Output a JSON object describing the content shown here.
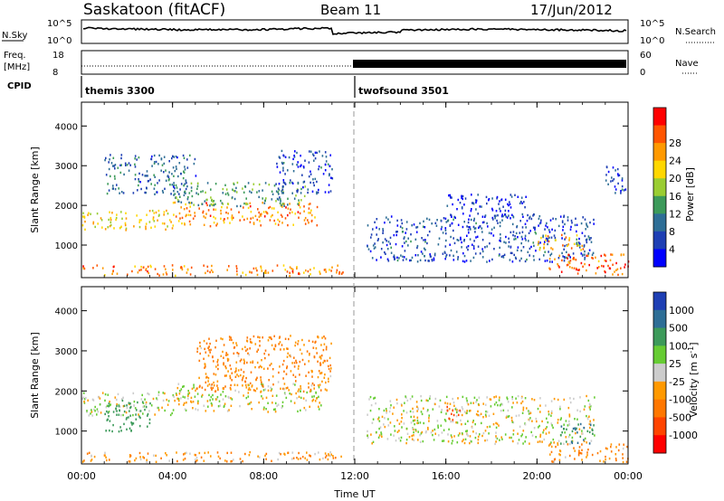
{
  "header": {
    "station": "Saskatoon (fitACF)",
    "beam": "Beam 11",
    "date": "17/Jun/2012"
  },
  "noise_panel": {
    "left_label": "N.Sky",
    "left_ticks": [
      "10^5",
      "10^0"
    ],
    "right_ticks": [
      "10^5",
      "10^0"
    ],
    "right_label": "N.Search"
  },
  "freq_panel": {
    "left_label_1": "Freq.",
    "left_label_2": "[MHz]",
    "left_ticks": [
      "18",
      "8"
    ],
    "right_ticks": [
      "60",
      "0"
    ],
    "right_label": "Nave"
  },
  "cpid": {
    "label": "CPID",
    "programs": [
      {
        "name": "themis 3300",
        "start_hour": 0
      },
      {
        "name": "twofsound 3501",
        "start_hour": 12
      }
    ]
  },
  "chart_data": [
    {
      "type": "heatmap",
      "parameter": "power",
      "xlabel": "Time UT",
      "ylabel": "Slant Range [km]",
      "x_range_hours": [
        0,
        24
      ],
      "ylim": [
        180,
        4600
      ],
      "y_ticks": [
        1000,
        2000,
        3000,
        4000
      ],
      "x_tick_labels": [
        "00:00",
        "04:00",
        "08:00",
        "12:00",
        "16:00",
        "20:00",
        "00:00"
      ],
      "colorbar": {
        "label": "Power [dB]",
        "tick_labels": [
          "4",
          "8",
          "12",
          "16",
          "20",
          "24",
          "28"
        ],
        "colors": [
          "#0000ff",
          "#1e3fb4",
          "#2e6e96",
          "#3c9a5a",
          "#9acd32",
          "#ffd700",
          "#ff9900",
          "#ff5500",
          "#ff0000"
        ]
      },
      "echo_regions": [
        {
          "t0": 0.0,
          "t1": 11.5,
          "r0": 250,
          "r1": 520,
          "value": 24
        },
        {
          "t0": 0.0,
          "t1": 4.0,
          "r0": 1400,
          "r1": 1900,
          "value": 20
        },
        {
          "t0": 4.0,
          "t1": 10.5,
          "r0": 1500,
          "r1": 2100,
          "value": 24
        },
        {
          "t0": 4.0,
          "t1": 9.8,
          "r0": 2000,
          "r1": 2600,
          "value": 12
        },
        {
          "t0": 8.5,
          "t1": 11.0,
          "r0": 2300,
          "r1": 3400,
          "value": 6
        },
        {
          "t0": 1.0,
          "t1": 5.0,
          "r0": 2300,
          "r1": 3300,
          "value": 8
        },
        {
          "t0": 12.5,
          "t1": 22.5,
          "r0": 600,
          "r1": 1800,
          "value": 6
        },
        {
          "t0": 16.0,
          "t1": 19.5,
          "r0": 1700,
          "r1": 2300,
          "value": 4
        },
        {
          "t0": 20.5,
          "t1": 24.0,
          "r0": 250,
          "r1": 800,
          "value": 26
        },
        {
          "t0": 20.0,
          "t1": 22.0,
          "r0": 900,
          "r1": 1300,
          "value": 22
        },
        {
          "t0": 23.0,
          "t1": 24.0,
          "r0": 2300,
          "r1": 3000,
          "value": 6
        }
      ]
    },
    {
      "type": "heatmap",
      "parameter": "velocity",
      "xlabel": "Time UT",
      "ylabel": "Slant Range [km]",
      "x_range_hours": [
        0,
        24
      ],
      "ylim": [
        180,
        4600
      ],
      "y_ticks": [
        1000,
        2000,
        3000,
        4000
      ],
      "x_tick_labels": [
        "00:00",
        "04:00",
        "08:00",
        "12:00",
        "16:00",
        "20:00",
        "00:00"
      ],
      "colorbar": {
        "label": "Velocity [m s^-1]",
        "tick_labels": [
          "1000",
          "500",
          "100",
          "25",
          "-25",
          "-100",
          "-500",
          "-1000"
        ],
        "colors": [
          "#1e3fb4",
          "#2e6e96",
          "#3c9a5a",
          "#66cc33",
          "#cccccc",
          "#ff9900",
          "#ff7700",
          "#ff4400",
          "#ff0000"
        ]
      },
      "echo_regions": [
        {
          "t0": 0.0,
          "t1": 11.5,
          "r0": 250,
          "r1": 500,
          "value": -80
        },
        {
          "t0": 0.0,
          "t1": 4.0,
          "r0": 1400,
          "r1": 2000,
          "value": 0
        },
        {
          "t0": 4.0,
          "t1": 10.5,
          "r0": 1500,
          "r1": 2200,
          "value": 0
        },
        {
          "t0": 1.0,
          "t1": 3.0,
          "r0": 1000,
          "r1": 1800,
          "value": 300
        },
        {
          "t0": 5.0,
          "t1": 11.0,
          "r0": 2000,
          "r1": 3400,
          "value": -120
        },
        {
          "t0": 12.5,
          "t1": 22.5,
          "r0": 700,
          "r1": 1900,
          "value": 0
        },
        {
          "t0": 16.0,
          "t1": 16.6,
          "r0": 1300,
          "r1": 1700,
          "value": -800
        },
        {
          "t0": 20.5,
          "t1": 24.0,
          "r0": 250,
          "r1": 700,
          "value": -120
        },
        {
          "t0": 21.0,
          "t1": 22.5,
          "r0": 700,
          "r1": 1200,
          "value": 500
        }
      ]
    }
  ]
}
